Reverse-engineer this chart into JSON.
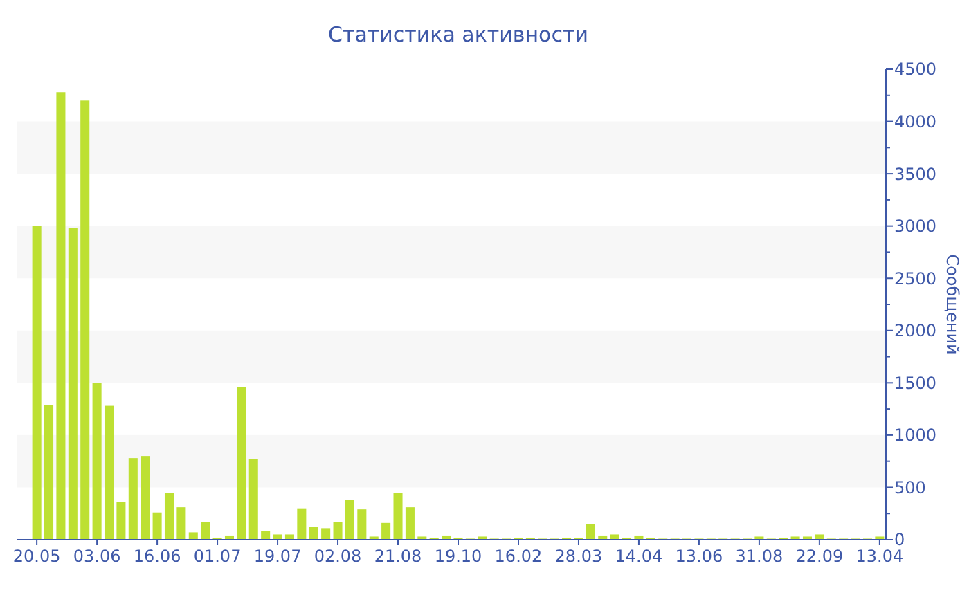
{
  "chart_data": {
    "type": "bar",
    "title": "Статистика активности",
    "ylabel": "Сообщений",
    "categories": [
      "20.05",
      null,
      null,
      null,
      null,
      "03.06",
      null,
      null,
      null,
      null,
      "16.06",
      null,
      null,
      null,
      null,
      "01.07",
      null,
      null,
      null,
      null,
      "19.07",
      null,
      null,
      null,
      null,
      "02.08",
      null,
      null,
      null,
      null,
      "21.08",
      null,
      null,
      null,
      null,
      "19.10",
      null,
      null,
      null,
      null,
      "16.02",
      null,
      null,
      null,
      null,
      "28.03",
      null,
      null,
      null,
      null,
      "14.04",
      null,
      null,
      null,
      null,
      "13.06",
      null,
      null,
      null,
      null,
      "31.08",
      null,
      null,
      null,
      null,
      "22.09",
      null,
      null,
      null,
      null,
      "13.04"
    ],
    "values": [
      3000,
      1290,
      4280,
      2980,
      4200,
      1500,
      1280,
      360,
      780,
      800,
      260,
      450,
      310,
      70,
      170,
      20,
      40,
      1460,
      770,
      80,
      50,
      50,
      300,
      120,
      110,
      170,
      380,
      290,
      30,
      160,
      450,
      310,
      30,
      20,
      40,
      20,
      10,
      30,
      10,
      10,
      20,
      20,
      10,
      10,
      20,
      20,
      150,
      40,
      50,
      20,
      40,
      20,
      10,
      10,
      10,
      10,
      10,
      10,
      10,
      10,
      30,
      10,
      20,
      30,
      30,
      50,
      10,
      10,
      10,
      10,
      30
    ],
    "color": "#bde032",
    "ylim": [
      0,
      4500
    ],
    "yticks": [
      0,
      {
        "value": 250,
        "label": null
      },
      500,
      {
        "value": 750,
        "label": null
      },
      1000,
      {
        "value": 1250,
        "label": null
      },
      1500,
      {
        "value": 1750,
        "label": null
      },
      2000,
      {
        "value": 2250,
        "label": null
      },
      2500,
      {
        "value": 2750,
        "label": null
      },
      3000,
      {
        "value": 3250,
        "label": null
      },
      3500,
      {
        "value": 3750,
        "label": null
      },
      4000,
      {
        "value": 4250,
        "label": null
      },
      4500
    ],
    "bands": [
      {
        "axis": "y",
        "from": 500,
        "to": 1000,
        "color": "#f7f7f7"
      },
      {
        "axis": "y",
        "from": 1500,
        "to": 2000,
        "color": "#f7f7f7"
      },
      {
        "axis": "y",
        "from": 2500,
        "to": 3000,
        "color": "#f7f7f7"
      },
      {
        "axis": "y",
        "from": 3500,
        "to": 4000,
        "color": "#f7f7f7"
      }
    ]
  }
}
